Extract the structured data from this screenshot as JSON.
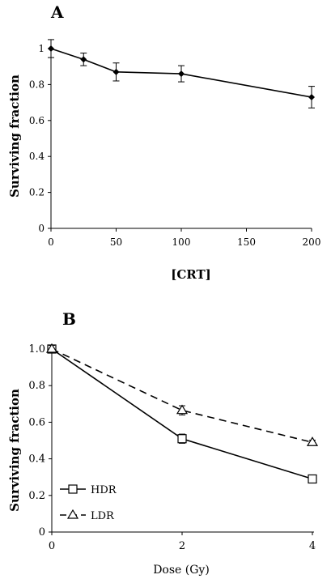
{
  "chart_data": [
    {
      "panel": "A",
      "type": "line",
      "xlabel": "[CRT]",
      "ylabel": "Surviving fraction",
      "xlim": [
        0,
        200
      ],
      "ylim": [
        0,
        1
      ],
      "xticks": [
        "0",
        "50",
        "100",
        "150",
        "200"
      ],
      "yticks": [
        "0",
        "0.2",
        "0.4",
        "0.6",
        "0.8",
        "1"
      ],
      "series": [
        {
          "x": [
            0,
            25,
            50,
            100,
            200
          ],
          "values": [
            1.0,
            0.94,
            0.87,
            0.86,
            0.73
          ],
          "error": [
            0.05,
            0.035,
            0.05,
            0.045,
            0.06
          ],
          "marker": "diamond",
          "line": "solid",
          "color": "#000000"
        }
      ]
    },
    {
      "panel": "B",
      "type": "line",
      "xlabel": "Dose (Gy)",
      "ylabel": "Surviving fraction",
      "xlim": [
        0,
        4
      ],
      "ylim": [
        0,
        1.0
      ],
      "xticks": [
        "0",
        "2",
        "4"
      ],
      "yticks": [
        "0",
        "0.2",
        "0.4",
        "0.6",
        "0.8",
        "1.0"
      ],
      "legend_position": "bottom-left",
      "series": [
        {
          "name": "HDR",
          "x": [
            0,
            2,
            4
          ],
          "values": [
            1.0,
            0.51,
            0.29
          ],
          "error": [
            0.02,
            0.025,
            0.012
          ],
          "marker": "open-square",
          "line": "solid",
          "color": "#000000"
        },
        {
          "name": "LDR",
          "x": [
            0,
            2,
            4
          ],
          "values": [
            1.0,
            0.665,
            0.49
          ],
          "error": [
            0.02,
            0.025,
            0.012
          ],
          "marker": "open-triangle",
          "line": "dashed",
          "color": "#000000"
        }
      ]
    }
  ]
}
